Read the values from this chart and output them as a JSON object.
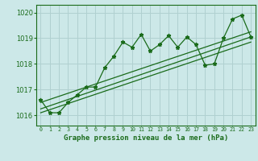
{
  "title": "Graphe pression niveau de la mer (hPa)",
  "bg_color": "#cce8e8",
  "grid_color": "#b0d0d0",
  "line_color": "#1a6b1a",
  "x_labels": [
    "0",
    "1",
    "2",
    "3",
    "4",
    "5",
    "6",
    "7",
    "8",
    "9",
    "10",
    "11",
    "12",
    "13",
    "14",
    "15",
    "16",
    "17",
    "18",
    "19",
    "20",
    "21",
    "22",
    "23"
  ],
  "pressure_data": [
    1016.6,
    1016.1,
    1016.1,
    1016.5,
    1016.8,
    1017.1,
    1017.1,
    1017.85,
    1018.3,
    1018.85,
    1018.65,
    1019.15,
    1018.5,
    1018.75,
    1019.1,
    1018.65,
    1019.05,
    1018.75,
    1017.95,
    1018.0,
    1019.0,
    1019.75,
    1019.9,
    1019.05
  ],
  "ylim": [
    1015.6,
    1020.3
  ],
  "yticks": [
    1016,
    1017,
    1018,
    1019,
    1020
  ],
  "trend_lower": [
    1016.1,
    1018.85
  ],
  "trend_upper": [
    1016.5,
    1019.25
  ],
  "trend_mid": [
    1016.25,
    1019.05
  ]
}
